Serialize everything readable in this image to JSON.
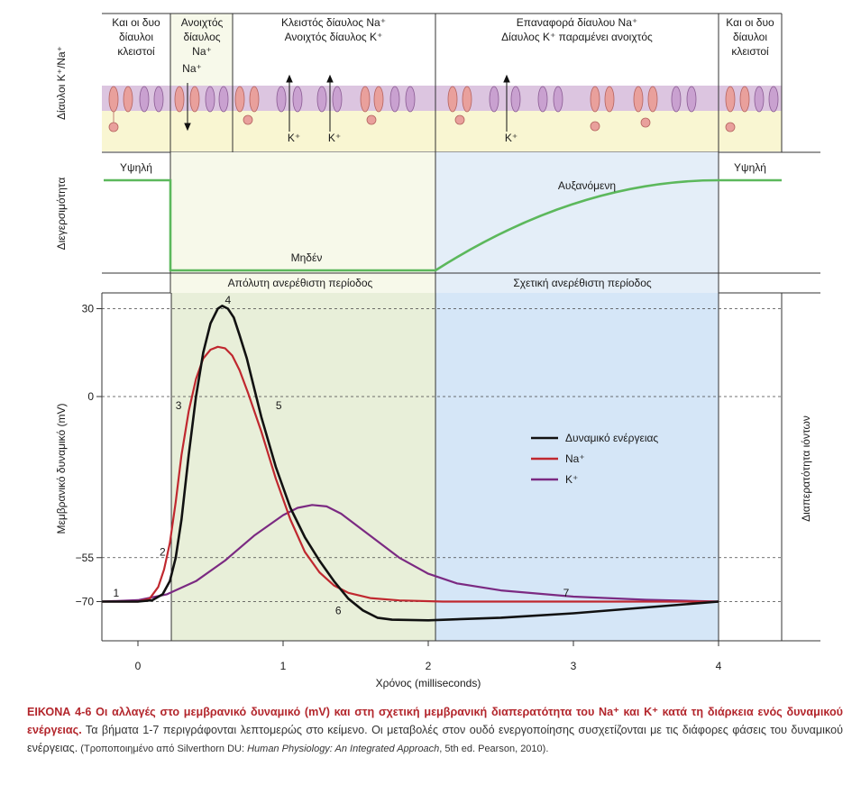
{
  "panels": {
    "channels": {
      "ylabel": "Δίαυλοι K⁺/Na⁺",
      "phases": [
        {
          "lines": [
            "Και οι δυο",
            "δίαυλοι",
            "κλειστοί"
          ]
        },
        {
          "lines": [
            "Ανοιχτός",
            "δίαυλος",
            "Na⁺"
          ]
        },
        {
          "lines": [
            "Κλειστός δίαυλος Na⁺",
            "Ανοιχτός δίαυλος K⁺"
          ]
        },
        {
          "lines": [
            "Επαναφορά δίαυλου Na⁺",
            "Δίαυλος K⁺ παραμένει ανοιχτός"
          ]
        },
        {
          "lines": [
            "Και οι δυο",
            "δίαυλοι",
            "κλειστοί"
          ]
        }
      ],
      "na_arrow_label": "Na⁺",
      "k_arrow_label": "K⁺"
    },
    "excitability": {
      "ylabel": "Διεγερσιμότητα",
      "high_left": "Υψηλή",
      "zero": "Μηδέν",
      "increasing": "Αυξανόμενη",
      "high_right": "Υψηλή",
      "absolute_refractory": "Απόλυτη ανερέθιστη περίοδος",
      "relative_refractory": "Σχετική ανερέθιστη περίοδος",
      "colors": {
        "line": "#5cb85c",
        "absolute_fill": "#f7f9ea",
        "relative_fill": "#e4eef8"
      }
    }
  },
  "chart_data": {
    "type": "line",
    "xlabel": "Χρόνος (milliseconds)",
    "ylabel": "Μεμβρανικό δυναμικό (mV)",
    "y2label": "Διαπερατότητα ιόντων",
    "xlim": [
      -0.25,
      4.45
    ],
    "ylim": [
      -92,
      36
    ],
    "x_ticks": [
      0,
      1,
      2,
      3,
      4
    ],
    "y_ticks": [
      30,
      0,
      -55,
      -70
    ],
    "dashed_gridlines_y": [
      30,
      0,
      -55,
      -70
    ],
    "absolute_refractory_x": [
      0.23,
      2.05
    ],
    "relative_refractory_x": [
      2.05,
      4.0
    ],
    "legend_position": "center-right",
    "series": [
      {
        "name": "Δυναμικό ενέργειας",
        "color": "#111111",
        "points": [
          [
            -0.25,
            -70
          ],
          [
            0.0,
            -70
          ],
          [
            0.1,
            -69.5
          ],
          [
            0.17,
            -67.5
          ],
          [
            0.22,
            -63
          ],
          [
            0.26,
            -55
          ],
          [
            0.3,
            -42
          ],
          [
            0.35,
            -20
          ],
          [
            0.4,
            0
          ],
          [
            0.45,
            15
          ],
          [
            0.5,
            25
          ],
          [
            0.55,
            30
          ],
          [
            0.58,
            31
          ],
          [
            0.62,
            30
          ],
          [
            0.66,
            27
          ],
          [
            0.7,
            21
          ],
          [
            0.75,
            13
          ],
          [
            0.8,
            3
          ],
          [
            0.85,
            -7
          ],
          [
            0.95,
            -24
          ],
          [
            1.05,
            -38
          ],
          [
            1.15,
            -48
          ],
          [
            1.25,
            -56
          ],
          [
            1.35,
            -63
          ],
          [
            1.45,
            -69
          ],
          [
            1.55,
            -73
          ],
          [
            1.65,
            -75.5
          ],
          [
            1.75,
            -76.2
          ],
          [
            2.0,
            -76.4
          ],
          [
            2.5,
            -75.5
          ],
          [
            3.0,
            -74
          ],
          [
            3.5,
            -72
          ],
          [
            3.8,
            -70.8
          ],
          [
            4.0,
            -70
          ]
        ]
      },
      {
        "name": "Na⁺",
        "color": "#c0282f",
        "points": [
          [
            -0.25,
            -70
          ],
          [
            0.0,
            -70
          ],
          [
            0.08,
            -69
          ],
          [
            0.14,
            -65
          ],
          [
            0.18,
            -59
          ],
          [
            0.22,
            -50
          ],
          [
            0.26,
            -36
          ],
          [
            0.3,
            -20
          ],
          [
            0.35,
            -5
          ],
          [
            0.4,
            6
          ],
          [
            0.45,
            13
          ],
          [
            0.5,
            16
          ],
          [
            0.55,
            17
          ],
          [
            0.6,
            16.5
          ],
          [
            0.65,
            14
          ],
          [
            0.7,
            9
          ],
          [
            0.76,
            1
          ],
          [
            0.85,
            -12
          ],
          [
            0.95,
            -28
          ],
          [
            1.05,
            -42
          ],
          [
            1.15,
            -53
          ],
          [
            1.25,
            -60
          ],
          [
            1.35,
            -64.5
          ],
          [
            1.45,
            -67
          ],
          [
            1.6,
            -68.8
          ],
          [
            1.8,
            -69.6
          ],
          [
            2.1,
            -70
          ],
          [
            3.0,
            -70
          ],
          [
            4.0,
            -70
          ]
        ]
      },
      {
        "name": "K⁺",
        "color": "#7b2a82",
        "points": [
          [
            -0.25,
            -70
          ],
          [
            0.0,
            -69.5
          ],
          [
            0.2,
            -67.5
          ],
          [
            0.4,
            -63
          ],
          [
            0.6,
            -56
          ],
          [
            0.8,
            -47.5
          ],
          [
            1.0,
            -40.5
          ],
          [
            1.1,
            -38
          ],
          [
            1.2,
            -37
          ],
          [
            1.3,
            -37.5
          ],
          [
            1.4,
            -40
          ],
          [
            1.6,
            -47.5
          ],
          [
            1.8,
            -55
          ],
          [
            2.0,
            -60.5
          ],
          [
            2.2,
            -63.8
          ],
          [
            2.5,
            -66.2
          ],
          [
            3.0,
            -68.3
          ],
          [
            3.5,
            -69.4
          ],
          [
            4.0,
            -70
          ]
        ]
      }
    ],
    "annotations": [
      {
        "text": "1",
        "x": -0.15,
        "y": -67
      },
      {
        "text": "2",
        "x": 0.17,
        "y": -53
      },
      {
        "text": "3",
        "x": 0.28,
        "y": -3
      },
      {
        "text": "4",
        "x": 0.62,
        "y": 33
      },
      {
        "text": "5",
        "x": 0.97,
        "y": -3
      },
      {
        "text": "6",
        "x": 1.38,
        "y": -73
      },
      {
        "text": "7",
        "x": 2.95,
        "y": -67
      }
    ]
  },
  "caption": {
    "lead": "ΕΙΚΟΝΑ 4-6   Οι αλλαγές στο μεμβρανικό δυναμικό (mV) και στη σχετική μεμβρανική διαπερατότητα του Na⁺ και K⁺ κατά τη διάρκεια ενός δυναμικού ενέργειας.",
    "body": " Τα βήματα 1-7 περιγράφονται λεπτομερώς στο κείμενο. Οι μεταβολές στον ουδό ενεργοποίησης συσχετίζονται με τις διάφορες φάσεις του δυναμικού ενέργειας.",
    "source_pre": " (Τροποποιημένο από Silverthorn DU: ",
    "source_title": "Human Physiology: An Integrated Approach",
    "source_post": ", 5th ed. Pearson, 2010)."
  }
}
